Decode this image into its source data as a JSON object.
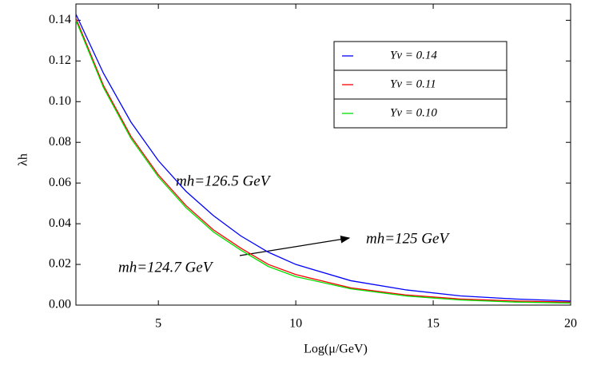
{
  "chart_data": {
    "type": "line",
    "xlabel": "Log(μ/GeV)",
    "ylabel": "λh",
    "x": [
      2,
      3,
      4,
      5,
      6,
      7,
      8,
      9,
      10,
      12,
      14,
      16,
      18,
      20
    ],
    "series": [
      {
        "name": "Yν = 0.14",
        "color": "#0000ff",
        "values": [
          0.143,
          0.114,
          0.09,
          0.071,
          0.056,
          0.044,
          0.034,
          0.026,
          0.02,
          0.012,
          0.0075,
          0.0045,
          0.003,
          0.002
        ]
      },
      {
        "name": "Yν = 0.11",
        "color": "#ff0000",
        "values": [
          0.141,
          0.108,
          0.083,
          0.064,
          0.049,
          0.037,
          0.028,
          0.02,
          0.015,
          0.0085,
          0.005,
          0.003,
          0.002,
          0.0015
        ]
      },
      {
        "name": "Yν = 0.10",
        "color": "#00e000",
        "values": [
          0.14,
          0.107,
          0.082,
          0.063,
          0.048,
          0.036,
          0.027,
          0.019,
          0.014,
          0.008,
          0.0045,
          0.0025,
          0.0015,
          0.001
        ]
      }
    ],
    "annotations": [
      {
        "text": "mh=126.5 GeV",
        "color": "#0000ff"
      },
      {
        "text": "mh=125 GeV",
        "color": "#ff0000"
      },
      {
        "text": "mh=124.7 GeV",
        "color": "#00e000"
      }
    ],
    "xlim": [
      2,
      20
    ],
    "xticks": [
      5,
      10,
      15,
      20
    ],
    "ylim": [
      0,
      0.148
    ],
    "yticks": [
      {
        "value": 0,
        "label": "0.00"
      },
      {
        "value": 0.02,
        "label": "0.02"
      },
      {
        "value": 0.04,
        "label": "0.04"
      },
      {
        "value": 0.06,
        "label": "0.06"
      },
      {
        "value": 0.08,
        "label": "0.08"
      },
      {
        "value": 0.1,
        "label": "0.10"
      },
      {
        "value": 0.12,
        "label": "0.12"
      },
      {
        "value": 0.14,
        "label": "0.14"
      }
    ],
    "legend": "upper-right",
    "grid": false
  }
}
